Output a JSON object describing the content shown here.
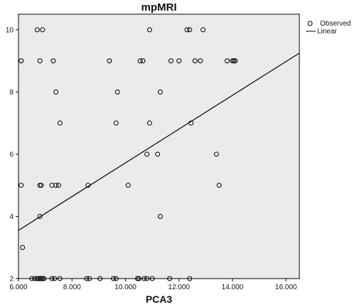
{
  "chart_data": {
    "type": "scatter",
    "title": "mpMRI",
    "xlabel": "PCA3",
    "ylabel": "",
    "xlim": [
      6,
      16.5
    ],
    "ylim": [
      2,
      10.5
    ],
    "x_ticks": [
      "6.000",
      "8.000",
      "10.000",
      "12.000",
      "14.000",
      "16.000"
    ],
    "y_ticks": [
      "2",
      "4",
      "6",
      "8",
      "10"
    ],
    "grid": false,
    "legend_position": "top-right",
    "legend": [
      "Observed",
      "Linear"
    ],
    "colors": {
      "plot_background": "#ebebeb",
      "marker": "#000000",
      "line": "#000000"
    },
    "series": [
      {
        "name": "Observed",
        "kind": "scatter",
        "points": [
          [
            6.1,
            9
          ],
          [
            6.1,
            5
          ],
          [
            6.15,
            3
          ],
          [
            6.7,
            10
          ],
          [
            6.9,
            10
          ],
          [
            10.9,
            10
          ],
          [
            12.3,
            10
          ],
          [
            12.4,
            10
          ],
          [
            12.9,
            10
          ],
          [
            7.3,
            9
          ],
          [
            6.8,
            9
          ],
          [
            9.4,
            9
          ],
          [
            10.55,
            9
          ],
          [
            10.65,
            9
          ],
          [
            11.7,
            9
          ],
          [
            12.0,
            9
          ],
          [
            12.6,
            9
          ],
          [
            12.8,
            9
          ],
          [
            13.8,
            9
          ],
          [
            14.0,
            9
          ],
          [
            14.05,
            9
          ],
          [
            14.1,
            9
          ],
          [
            7.4,
            8
          ],
          [
            9.7,
            8
          ],
          [
            11.3,
            8
          ],
          [
            7.55,
            7
          ],
          [
            9.65,
            7
          ],
          [
            10.9,
            7
          ],
          [
            12.45,
            7
          ],
          [
            10.8,
            6
          ],
          [
            11.2,
            6
          ],
          [
            13.4,
            6
          ],
          [
            6.8,
            5
          ],
          [
            6.85,
            5
          ],
          [
            7.25,
            5
          ],
          [
            7.4,
            5
          ],
          [
            7.5,
            5
          ],
          [
            8.6,
            5
          ],
          [
            10.1,
            5
          ],
          [
            13.5,
            5
          ],
          [
            6.8,
            4
          ],
          [
            11.3,
            4
          ],
          [
            6.5,
            2
          ],
          [
            6.6,
            2
          ],
          [
            6.7,
            2
          ],
          [
            6.75,
            2
          ],
          [
            6.8,
            2
          ],
          [
            6.85,
            2
          ],
          [
            6.9,
            2
          ],
          [
            6.95,
            2
          ],
          [
            7.25,
            2
          ],
          [
            7.35,
            2
          ],
          [
            7.55,
            2
          ],
          [
            8.55,
            2
          ],
          [
            8.65,
            2
          ],
          [
            9.05,
            2
          ],
          [
            9.55,
            2
          ],
          [
            9.65,
            2
          ],
          [
            10.45,
            2
          ],
          [
            10.5,
            2
          ],
          [
            10.7,
            2
          ],
          [
            10.8,
            2
          ],
          [
            11.0,
            2
          ],
          [
            11.65,
            2
          ],
          [
            12.4,
            2
          ]
        ]
      },
      {
        "name": "Linear",
        "kind": "line",
        "points": [
          [
            6.0,
            3.55
          ],
          [
            16.5,
            9.25
          ]
        ]
      }
    ]
  }
}
